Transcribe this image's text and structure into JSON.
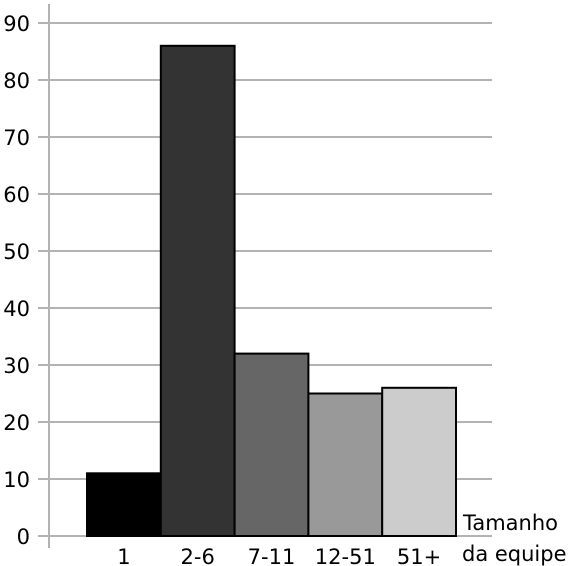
{
  "chart_data": {
    "type": "bar",
    "categories": [
      "1",
      "2-6",
      "7-11",
      "12-51",
      "51+"
    ],
    "values": [
      11,
      86,
      32,
      25,
      26
    ],
    "colors": [
      "#000000",
      "#333333",
      "#666666",
      "#999999",
      "#cccccc"
    ],
    "ylim": [
      0,
      90
    ],
    "yticks": [
      "0",
      "10",
      "20",
      "30",
      "40",
      "50",
      "60",
      "70",
      "80",
      "90"
    ],
    "xlabel_line1": "Tamanho",
    "xlabel_line2": "da equipe",
    "grid": true
  }
}
